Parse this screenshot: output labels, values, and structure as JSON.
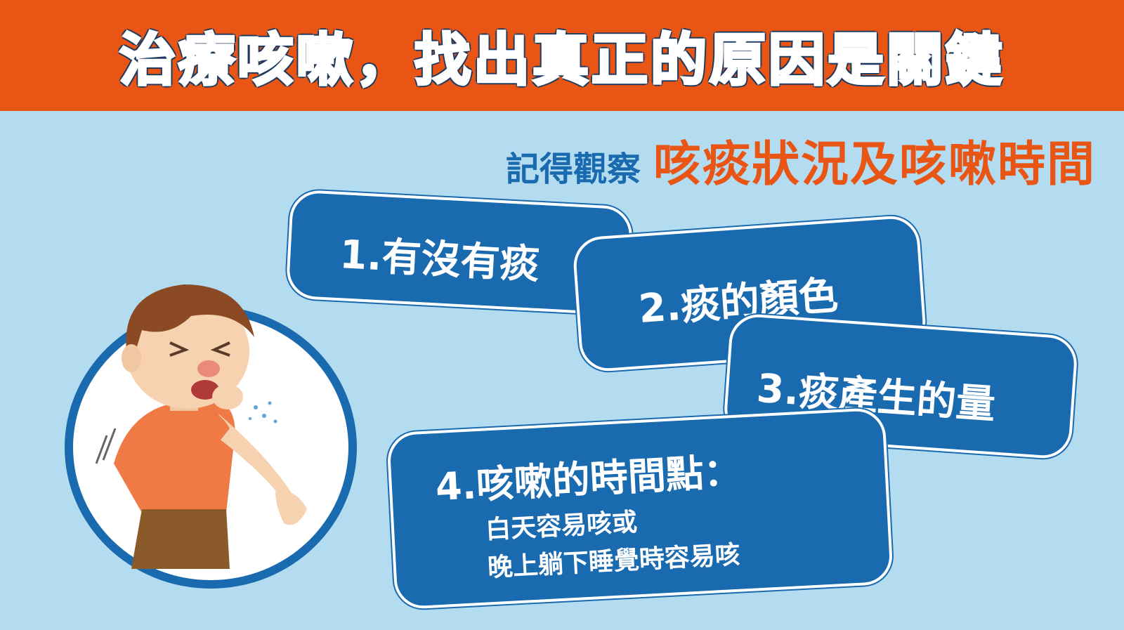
{
  "banner": {
    "title": "治療咳嗽，找出真正的原因是關鍵"
  },
  "subtitle": {
    "prefix": "記得觀察",
    "highlight": "咳痰狀況及咳嗽時間"
  },
  "items": [
    {
      "label": "1.有沒有痰"
    },
    {
      "label": "2.痰的顏色"
    },
    {
      "label": "3.痰產生的量"
    },
    {
      "label": "4.咳嗽的時間點：",
      "lines": [
        "白天容易咳或",
        "晚上躺下睡覺時容易咳"
      ]
    }
  ],
  "colors": {
    "banner": "#e85514",
    "accent_blue": "#1a6aaf",
    "background": "#b4dcf1",
    "highlight": "#e85514"
  },
  "illustration": {
    "icon": "coughing-boy-illustration"
  }
}
